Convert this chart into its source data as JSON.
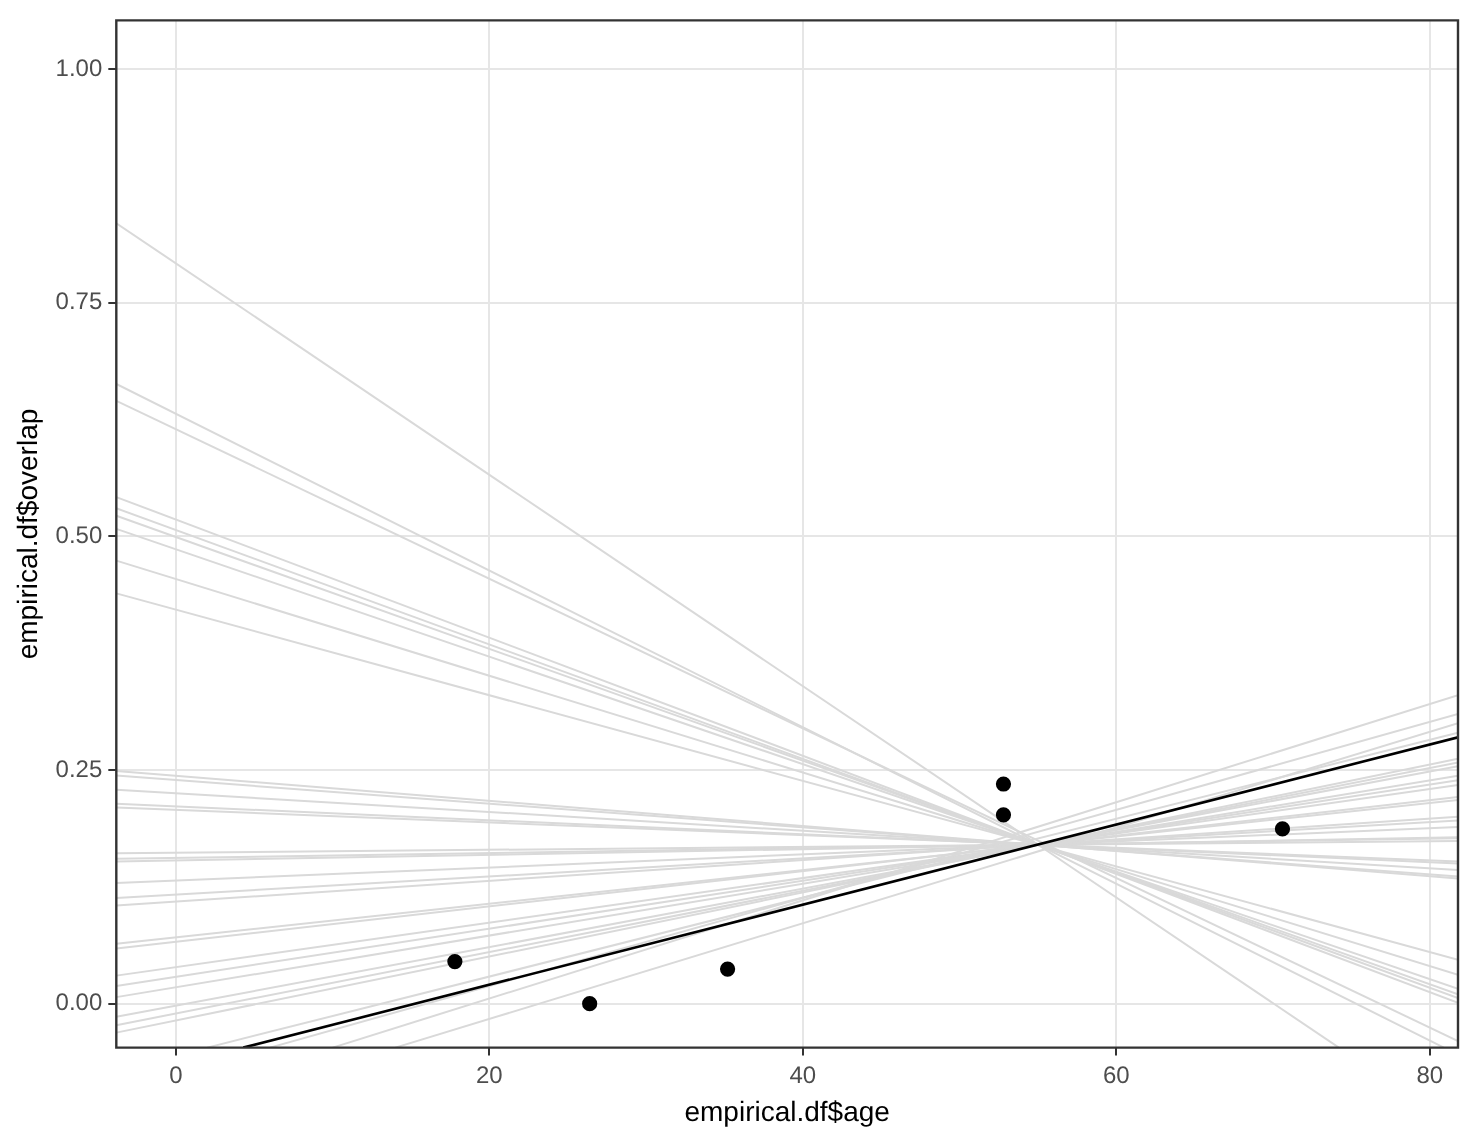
{
  "chart_data": {
    "type": "scatter",
    "xlabel": "empirical.df$age",
    "ylabel": "empirical.df$overlap",
    "xlim": [
      -3.8,
      81.8
    ],
    "ylim": [
      -0.047,
      1.052
    ],
    "xticks": [
      0,
      20,
      40,
      60,
      80
    ],
    "yticks": [
      {
        "value": 0,
        "label": "0.00"
      },
      {
        "value": 0.25,
        "label": "0.25"
      },
      {
        "value": 0.5,
        "label": "0.50"
      },
      {
        "value": 0.75,
        "label": "0.75"
      },
      {
        "value": 1,
        "label": "1.00"
      }
    ],
    "grid": true,
    "legend": false,
    "marker": "none",
    "series": [
      {
        "type": "line",
        "color": "#d9d9d9",
        "x": [
          -3.8,
          74.2
        ],
        "values": [
          0.835,
          -0.047
        ]
      },
      {
        "type": "line",
        "color": "#d9d9d9",
        "x": [
          -3.8,
          80.9
        ],
        "values": [
          0.663,
          -0.047
        ]
      },
      {
        "type": "line",
        "color": "#d9d9d9",
        "x": [
          -3.8,
          81.8
        ],
        "values": [
          0.645,
          -0.04
        ]
      },
      {
        "type": "line",
        "color": "#d9d9d9",
        "x": [
          -3.8,
          81.8
        ],
        "values": [
          0.542,
          0.001
        ]
      },
      {
        "type": "line",
        "color": "#d9d9d9",
        "x": [
          -3.8,
          81.8
        ],
        "values": [
          0.53,
          0.006
        ]
      },
      {
        "type": "line",
        "color": "#d9d9d9",
        "x": [
          -3.8,
          81.8
        ],
        "values": [
          0.522,
          0.01
        ]
      },
      {
        "type": "line",
        "color": "#d9d9d9",
        "x": [
          -3.8,
          81.8
        ],
        "values": [
          0.508,
          0.016
        ]
      },
      {
        "type": "line",
        "color": "#d9d9d9",
        "x": [
          -3.8,
          81.8
        ],
        "values": [
          0.474,
          0.031
        ]
      },
      {
        "type": "line",
        "color": "#d9d9d9",
        "x": [
          -3.8,
          81.8
        ],
        "values": [
          0.439,
          0.047
        ]
      },
      {
        "type": "line",
        "color": "#d9d9d9",
        "x": [
          -3.8,
          81.8
        ],
        "values": [
          0.249,
          0.134
        ]
      },
      {
        "type": "line",
        "color": "#d9d9d9",
        "x": [
          -3.8,
          81.8
        ],
        "values": [
          0.244,
          0.136
        ]
      },
      {
        "type": "line",
        "color": "#d9d9d9",
        "x": [
          -3.8,
          81.8
        ],
        "values": [
          0.229,
          0.143
        ]
      },
      {
        "type": "line",
        "color": "#d9d9d9",
        "x": [
          -3.8,
          81.8
        ],
        "values": [
          0.214,
          0.15
        ]
      },
      {
        "type": "line",
        "color": "#d9d9d9",
        "x": [
          -3.8,
          81.8
        ],
        "values": [
          0.21,
          0.152
        ]
      },
      {
        "type": "line",
        "color": "#d9d9d9",
        "x": [
          -3.8,
          81.8
        ],
        "values": [
          0.161,
          0.174
        ]
      },
      {
        "type": "line",
        "color": "#d9d9d9",
        "x": [
          -3.8,
          81.8
        ],
        "values": [
          0.155,
          0.177
        ]
      },
      {
        "type": "line",
        "color": "#d9d9d9",
        "x": [
          -3.8,
          81.8
        ],
        "values": [
          0.152,
          0.178
        ]
      },
      {
        "type": "line",
        "color": "#d9d9d9",
        "x": [
          -3.8,
          81.8
        ],
        "values": [
          0.129,
          0.189
        ]
      },
      {
        "type": "line",
        "color": "#d9d9d9",
        "x": [
          -3.8,
          81.8
        ],
        "values": [
          0.113,
          0.196
        ]
      },
      {
        "type": "line",
        "color": "#d9d9d9",
        "x": [
          -3.8,
          81.8
        ],
        "values": [
          0.105,
          0.2
        ]
      },
      {
        "type": "line",
        "color": "#d9d9d9",
        "x": [
          -3.8,
          81.8
        ],
        "values": [
          0.064,
          0.218
        ]
      },
      {
        "type": "line",
        "color": "#d9d9d9",
        "x": [
          -3.8,
          81.8
        ],
        "values": [
          0.059,
          0.221
        ]
      },
      {
        "type": "line",
        "color": "#d9d9d9",
        "x": [
          -3.8,
          81.8
        ],
        "values": [
          0.03,
          0.234
        ]
      },
      {
        "type": "line",
        "color": "#d9d9d9",
        "x": [
          -3.8,
          81.8
        ],
        "values": [
          0.019,
          0.239
        ]
      },
      {
        "type": "line",
        "color": "#d9d9d9",
        "x": [
          -3.8,
          81.8
        ],
        "values": [
          0.007,
          0.244
        ]
      },
      {
        "type": "line",
        "color": "#d9d9d9",
        "x": [
          -3.8,
          81.8
        ],
        "values": [
          -0.014,
          0.254
        ]
      },
      {
        "type": "line",
        "color": "#d9d9d9",
        "x": [
          -3.8,
          81.8
        ],
        "values": [
          -0.023,
          0.258
        ]
      },
      {
        "type": "line",
        "color": "#d9d9d9",
        "x": [
          -3.8,
          81.8
        ],
        "values": [
          -0.031,
          0.262
        ]
      },
      {
        "type": "line",
        "color": "#d9d9d9",
        "x": [
          2,
          81.8
        ],
        "values": [
          -0.047,
          0.29
        ]
      },
      {
        "type": "line",
        "color": "#d9d9d9",
        "x": [
          6,
          81.8
        ],
        "values": [
          -0.047,
          0.31
        ]
      },
      {
        "type": "line",
        "color": "#d9d9d9",
        "x": [
          10,
          81.8
        ],
        "values": [
          -0.047,
          0.33
        ]
      },
      {
        "type": "line",
        "color": "#d9d9d9",
        "x": [
          14,
          81.8
        ],
        "values": [
          -0.047,
          0.3
        ]
      },
      {
        "type": "line",
        "color": "#000000",
        "x": [
          4.3,
          81.8
        ],
        "values": [
          -0.047,
          0.285
        ]
      },
      {
        "marker": "circle",
        "color": "#000000",
        "x": [
          17.8,
          26.4,
          35.2,
          52.8,
          52.8,
          70.6
        ],
        "values": [
          0.045,
          0.0,
          0.037,
          0.235,
          0.202,
          0.187
        ]
      }
    ]
  }
}
